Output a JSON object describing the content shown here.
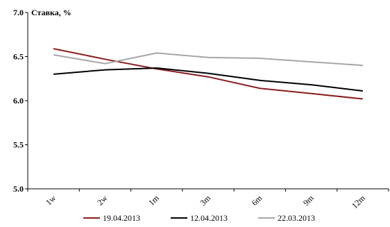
{
  "chart_data": {
    "type": "line",
    "ylabel": "Ставка, %",
    "categories": [
      "1w",
      "2w",
      "1m",
      "3m",
      "6m",
      "9m",
      "12m"
    ],
    "yticks": [
      "5.0",
      "5.5",
      "6.0",
      "6.5",
      "7.0"
    ],
    "ylim": [
      5.0,
      7.0
    ],
    "grid": false,
    "legend_position": "bottom",
    "series": [
      {
        "name": "19.04.2013",
        "color": "#8b1a1a",
        "values": [
          6.59,
          6.47,
          6.36,
          6.27,
          6.14,
          6.08,
          6.02
        ]
      },
      {
        "name": "12.04.2013",
        "color": "#000000",
        "values": [
          6.3,
          6.35,
          6.37,
          6.31,
          6.23,
          6.18,
          6.11
        ]
      },
      {
        "name": "22.03.2013",
        "color": "#a6a6a6",
        "values": [
          6.52,
          6.42,
          6.54,
          6.49,
          6.48,
          6.44,
          6.4
        ]
      }
    ]
  }
}
